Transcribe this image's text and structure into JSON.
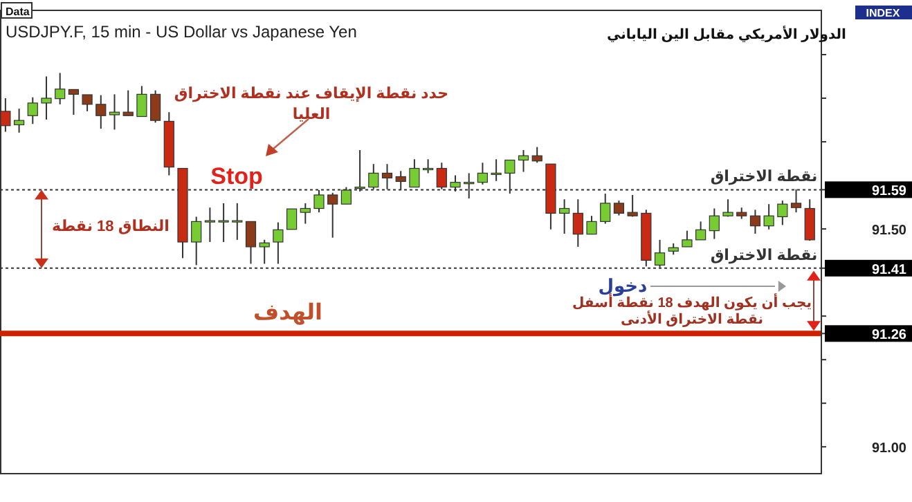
{
  "chart_data": {
    "type": "candlestick",
    "title": "USDJPY.F, 15 min - US Dollar vs Japanese Yen",
    "subtitle": "الدولار الأمريكي مقابل الين الياباني",
    "annotations": [
      "Data",
      "INDEX",
      "حدد نقطة الإيقاف عند نقطة الاختراق\nالعليا",
      "Stop",
      "النطاق 18 نقطة",
      "دخول",
      "يجب أن يكون الهدف 18 نقطة أسفل\nنقطة الاختراق الأدنى"
    ],
    "categories": [
      null,
      null,
      null,
      null,
      null,
      null,
      null,
      null,
      null,
      null,
      null,
      null,
      null,
      null,
      null,
      null,
      null,
      null,
      null,
      null,
      null,
      null,
      null,
      null,
      null,
      null,
      null,
      null,
      null,
      null,
      null,
      null,
      null,
      null,
      null,
      null,
      null,
      null,
      null,
      null,
      null,
      null,
      null,
      null,
      null,
      null,
      null,
      null,
      null,
      null,
      null,
      null,
      null,
      null,
      null,
      null,
      null,
      null,
      null,
      null
    ],
    "ohlc": [
      [
        91.77,
        91.8,
        91.723,
        91.737
      ],
      [
        91.739,
        91.776,
        91.721,
        91.749
      ],
      [
        91.76,
        91.802,
        91.741,
        91.789
      ],
      [
        91.789,
        91.85,
        91.751,
        91.8
      ],
      [
        91.799,
        91.858,
        91.786,
        91.821
      ],
      [
        91.82,
        91.82,
        91.762,
        91.809
      ],
      [
        91.808,
        91.808,
        91.77,
        91.786
      ],
      [
        91.786,
        91.807,
        91.73,
        91.76
      ],
      [
        91.762,
        91.809,
        91.728,
        91.768
      ],
      [
        91.768,
        91.818,
        91.76,
        91.76
      ],
      [
        91.758,
        91.828,
        91.758,
        91.809
      ],
      [
        91.809,
        91.818,
        91.744,
        91.749
      ],
      [
        91.747,
        91.768,
        91.623,
        91.642
      ],
      [
        91.639,
        91.639,
        91.433,
        91.47
      ],
      [
        91.47,
        91.528,
        91.417,
        91.517
      ],
      [
        91.517,
        91.549,
        91.47,
        91.519
      ],
      [
        91.519,
        91.559,
        91.47,
        91.519
      ],
      [
        91.519,
        91.559,
        91.475,
        91.519
      ],
      [
        91.517,
        91.517,
        91.42,
        91.459
      ],
      [
        91.459,
        91.475,
        91.42,
        91.468
      ],
      [
        91.47,
        91.515,
        91.42,
        91.498
      ],
      [
        91.499,
        91.546,
        91.499,
        91.546
      ],
      [
        91.538,
        91.559,
        91.512,
        91.547
      ],
      [
        91.547,
        91.589,
        91.538,
        91.578
      ],
      [
        91.578,
        91.583,
        91.48,
        91.557
      ],
      [
        91.557,
        91.596,
        91.557,
        91.589
      ],
      [
        91.596,
        91.681,
        91.586,
        91.596
      ],
      [
        91.596,
        91.649,
        91.591,
        91.628
      ],
      [
        91.628,
        91.649,
        91.591,
        91.617
      ],
      [
        91.62,
        91.633,
        91.589,
        91.609
      ],
      [
        91.596,
        91.66,
        91.596,
        91.639
      ],
      [
        91.639,
        91.66,
        91.628,
        91.639
      ],
      [
        91.639,
        91.652,
        91.591,
        91.596
      ],
      [
        91.596,
        91.623,
        91.586,
        91.607
      ],
      [
        91.607,
        91.628,
        91.57,
        91.607
      ],
      [
        91.607,
        91.652,
        91.602,
        91.628
      ],
      [
        91.628,
        91.66,
        91.61,
        91.628
      ],
      [
        91.628,
        91.658,
        91.581,
        91.658
      ],
      [
        91.658,
        91.681,
        91.631,
        91.668
      ],
      [
        91.668,
        91.688,
        91.652,
        91.656
      ],
      [
        91.649,
        91.649,
        91.499,
        91.536
      ],
      [
        91.536,
        91.568,
        91.489,
        91.547
      ],
      [
        91.536,
        91.568,
        91.459,
        91.488
      ],
      [
        91.488,
        91.53,
        91.488,
        91.517
      ],
      [
        91.517,
        91.581,
        91.512,
        91.559
      ],
      [
        91.559,
        91.565,
        91.531,
        91.536
      ],
      [
        91.538,
        91.578,
        91.528,
        91.53
      ],
      [
        91.536,
        91.544,
        91.414,
        91.428
      ],
      [
        91.417,
        91.475,
        91.412,
        91.445
      ],
      [
        91.449,
        91.467,
        91.441,
        91.457
      ],
      [
        91.459,
        91.496,
        91.459,
        91.475
      ],
      [
        91.475,
        91.517,
        91.475,
        91.498
      ],
      [
        91.496,
        91.547,
        91.477,
        91.53
      ],
      [
        91.53,
        91.568,
        91.528,
        91.538
      ],
      [
        91.538,
        91.549,
        91.523,
        91.53
      ],
      [
        91.53,
        91.544,
        91.489,
        91.507
      ],
      [
        91.507,
        91.557,
        91.499,
        91.53
      ],
      [
        91.528,
        91.565,
        91.509,
        91.557
      ],
      [
        91.559,
        91.591,
        91.538,
        91.549
      ],
      [
        91.547,
        91.568,
        91.473,
        91.475
      ]
    ],
    "colors": [
      "#c82a14",
      "#77cc33",
      "#77cc33",
      "#77cc33",
      "#77cc33",
      "#8b3a1a",
      "#8b3a1a",
      "#8b3a1a",
      "#77cc33",
      "#8b3a1a",
      "#77cc33",
      "#8b3a1a",
      "#c82a14",
      "#c82a14",
      "#77cc33",
      "#77cc33",
      "#77cc33",
      "#77cc33",
      "#8b3a1a",
      "#77cc33",
      "#77cc33",
      "#77cc33",
      "#77cc33",
      "#77cc33",
      "#8b3a1a",
      "#77cc33",
      "#77cc33",
      "#77cc33",
      "#8b3a1a",
      "#8b3a1a",
      "#77cc33",
      "#77cc33",
      "#c82a14",
      "#77cc33",
      "#77cc33",
      "#77cc33",
      "#77cc33",
      "#77cc33",
      "#77cc33",
      "#8b3a1a",
      "#c82a14",
      "#77cc33",
      "#c82a14",
      "#77cc33",
      "#77cc33",
      "#8b3a1a",
      "#8b3a1a",
      "#c82a14",
      "#77cc33",
      "#77cc33",
      "#77cc33",
      "#77cc33",
      "#77cc33",
      "#77cc33",
      "#8b3a1a",
      "#8b3a1a",
      "#77cc33",
      "#77cc33",
      "#8b3a1a",
      "#c82a14"
    ],
    "ylim": [
      90.94,
      92.0
    ],
    "yticks": [
      {
        "value": 91.9,
        "label": null
      },
      {
        "value": 91.8,
        "label": null
      },
      {
        "value": 91.7,
        "label": null
      },
      91.59,
      {
        "value": 91.5,
        "label": "91.50"
      },
      91.41,
      {
        "value": 91.3,
        "label": null
      },
      91.26,
      {
        "value": 91.2,
        "label": null
      },
      {
        "value": 91.1,
        "label": null
      },
      {
        "value": 91.0,
        "label": "91.00"
      }
    ],
    "tick_labels": "y",
    "ref_lines": [
      {
        "axis": "y",
        "value": 91.59,
        "label": "نقطة الاختراق",
        "color": "#333333",
        "line_style": "dotted"
      },
      {
        "axis": "y",
        "value": 91.41,
        "label": "نقطة الاختراق",
        "color": "#333333",
        "line_style": "dotted"
      },
      {
        "axis": "y",
        "value": 91.26,
        "label": "الهدف",
        "color": "#cc2200",
        "line_style": "solid"
      }
    ]
  }
}
